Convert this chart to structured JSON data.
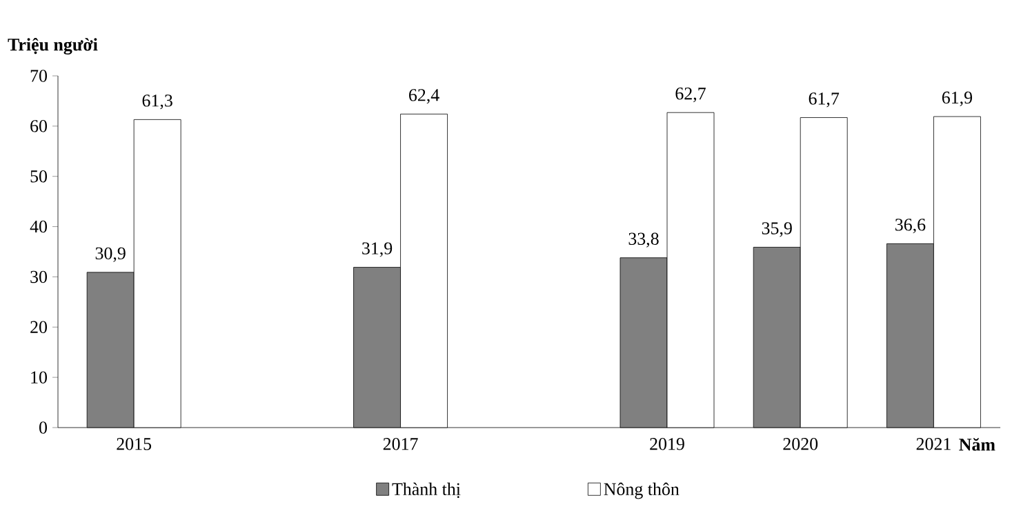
{
  "chart_data": {
    "type": "bar",
    "ylabel": "Triệu người",
    "xlabel": "Năm",
    "x": [
      2015,
      2017,
      2019,
      2020,
      2021
    ],
    "series": [
      {
        "name": "Thành thị",
        "color": "#808080",
        "values": [
          30.9,
          31.9,
          33.8,
          35.9,
          36.6
        ],
        "value_labels": [
          "30,9",
          "31,9",
          "33,8",
          "35,9",
          "36,6"
        ]
      },
      {
        "name": "Nông thôn",
        "color": "#ffffff",
        "values": [
          61.3,
          62.4,
          62.7,
          61.7,
          61.9
        ],
        "value_labels": [
          "61,3",
          "62,4",
          "62,7",
          "61,7",
          "61,9"
        ]
      }
    ],
    "xlim": [
      2014.43,
      2021.5
    ],
    "ylim": [
      0,
      70
    ],
    "xticks": [
      2015,
      2017,
      2019,
      2020,
      2021
    ],
    "yticks": [
      0,
      10,
      20,
      30,
      40,
      50,
      60,
      70
    ],
    "legend": "bottom"
  }
}
